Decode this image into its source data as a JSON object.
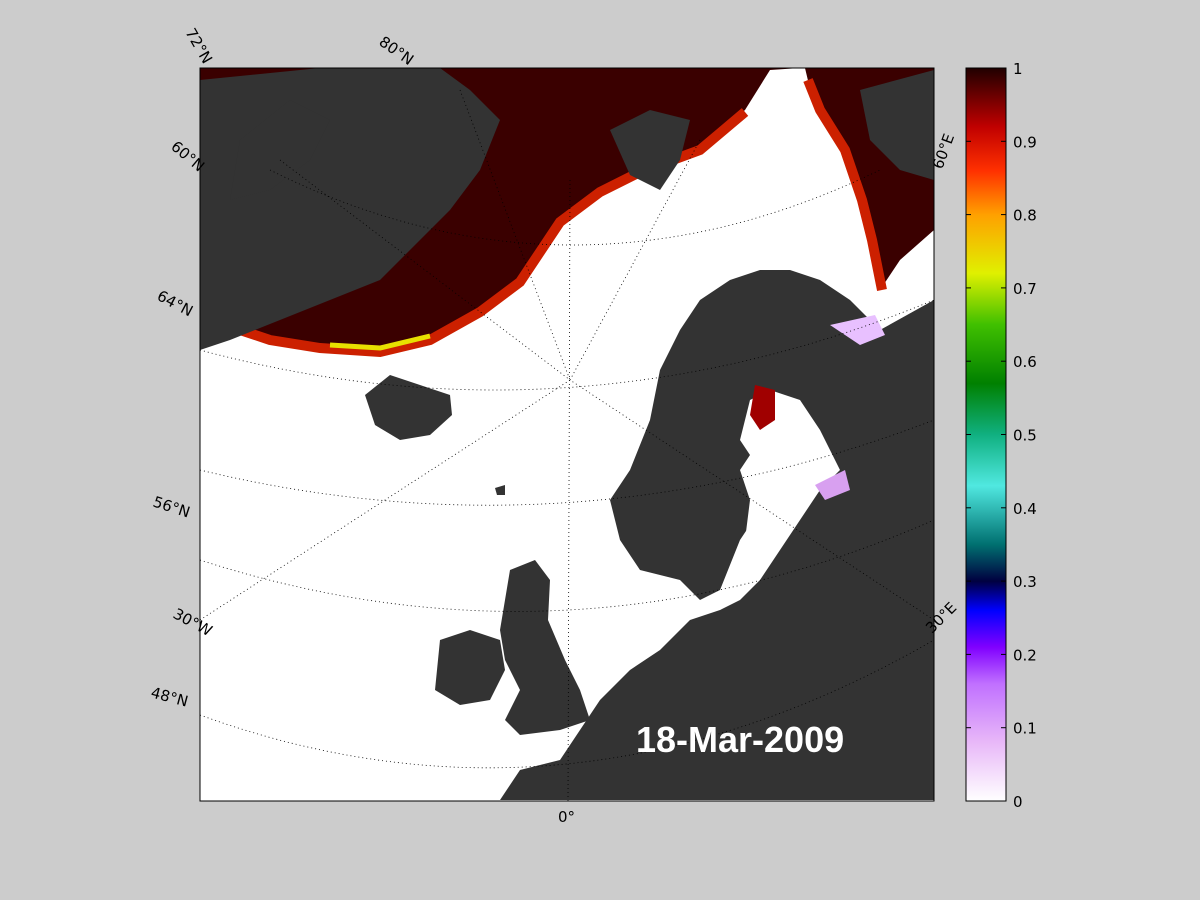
{
  "date": "18-Mar-2009",
  "grid_labels": {
    "lat_72": "72°N",
    "lat_80": "80°N",
    "lat_60_top": "60°N",
    "lat_64": "64°N",
    "lat_56": "56°N",
    "lon_30w": "30°W",
    "lat_48": "48°N",
    "lon_0": "0°",
    "lon_60e": "60°E",
    "lon_30e": "30°E"
  },
  "colorbar": {
    "ticks": [
      "0",
      "0.1",
      "0.2",
      "0.3",
      "0.4",
      "0.5",
      "0.6",
      "0.7",
      "0.8",
      "0.9",
      "1"
    ],
    "range": [
      0,
      1
    ]
  },
  "colors": {
    "background": "#cccccc",
    "land": "#333333",
    "ice_high": "#2a0000",
    "ocean": "#ffffff"
  }
}
